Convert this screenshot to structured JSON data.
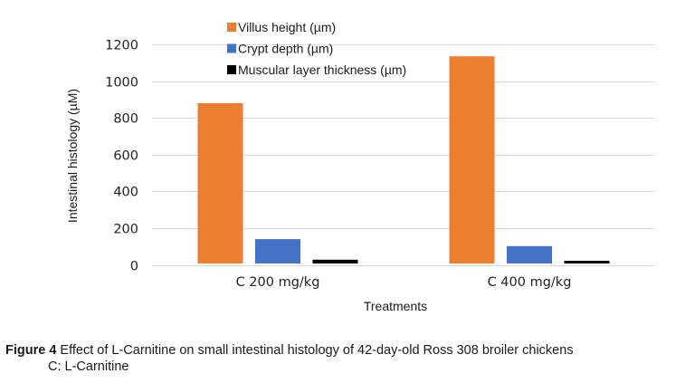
{
  "chart_data": {
    "type": "bar",
    "title": "",
    "xlabel": "Treatments",
    "ylabel": "Intestinal histology (µM)",
    "ylim": [
      0,
      1200
    ],
    "yticks": [
      0,
      200,
      400,
      600,
      800,
      1000,
      1200
    ],
    "grid": true,
    "legend_position": "top-center",
    "categories": [
      "C 200 mg/kg",
      "C 400 mg/kg"
    ],
    "series": [
      {
        "name": "Villus height (µm)",
        "color": "#ED7D31",
        "values": [
          880,
          1135
        ]
      },
      {
        "name": "Crypt depth (µm)",
        "color": "#4472C4",
        "values": [
          140,
          102
        ]
      },
      {
        "name": "Muscular layer thickness (µm)",
        "color": "#000000",
        "values": [
          28,
          22
        ]
      }
    ]
  },
  "caption": {
    "label": "Figure 4",
    "text": " Effect of L-Carnitine on small intestinal histology of 42-day-old Ross 308 broiler chickens",
    "note": "C: L-Carnitine"
  }
}
